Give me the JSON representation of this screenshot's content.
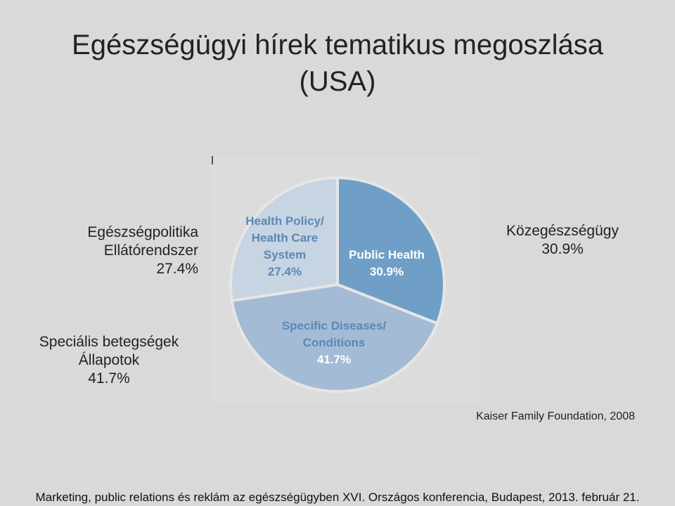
{
  "title": {
    "line1": "Egészségügyi hírek tematikus megoszlása",
    "line2": "(USA)"
  },
  "hu_labels": {
    "policy": [
      "Egészségpolitika",
      "Ellátórendszer",
      "27.4%"
    ],
    "public": [
      "Közegészségügy",
      "30.9%"
    ],
    "specific": [
      "Speciális betegségek",
      "Állapotok",
      "41.7%"
    ]
  },
  "source": "Kaiser Family Foundation, 2008",
  "footer": "Marketing, public relations és reklám  az  egészségügyben XVI. Országos konferencia, Budapest, 2013. február 21.",
  "colors": {
    "public": "#6f9fc6",
    "specific": "#a3bbd4",
    "policy": "#c7d4e1",
    "label_text": "#5a88b8",
    "label_value": "#ffffff"
  },
  "chart_data": {
    "type": "pie",
    "slices": [
      {
        "name": "Public Health",
        "lines": [
          "Public Health"
        ],
        "value": 30.9,
        "value_label": "30.9%",
        "color": "#6f9fc6"
      },
      {
        "name": "Specific Diseases/ Conditions",
        "lines": [
          "Specific Diseases/",
          "Conditions"
        ],
        "value": 41.7,
        "value_label": "41.7%",
        "color": "#a3bbd4"
      },
      {
        "name": "Health Policy/ Health Care System",
        "lines": [
          "Health Policy/",
          "Health Care",
          "System"
        ],
        "value": 27.4,
        "value_label": "27.4%",
        "color": "#c7d4e1"
      }
    ],
    "start": "12 o'clock",
    "direction": "clockwise"
  }
}
